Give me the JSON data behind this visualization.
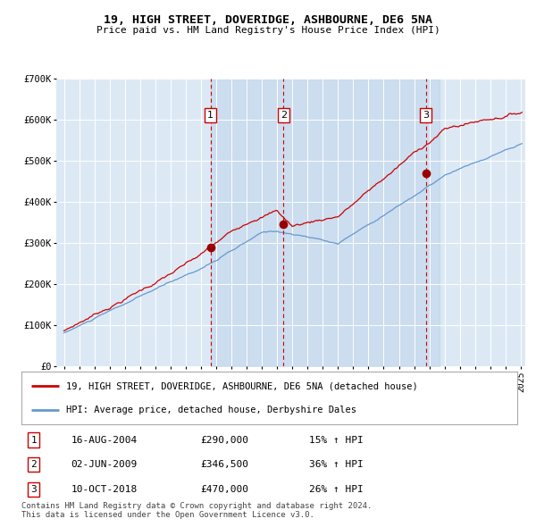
{
  "title": "19, HIGH STREET, DOVERIDGE, ASHBOURNE, DE6 5NA",
  "subtitle": "Price paid vs. HM Land Registry's House Price Index (HPI)",
  "sale_label": "19, HIGH STREET, DOVERIDGE, ASHBOURNE, DE6 5NA (detached house)",
  "hpi_label": "HPI: Average price, detached house, Derbyshire Dales",
  "sales": [
    {
      "num": 1,
      "date": "16-AUG-2004",
      "price": 290000,
      "pct": "15%",
      "dir": "↑"
    },
    {
      "num": 2,
      "date": "02-JUN-2009",
      "price": 346500,
      "pct": "36%",
      "dir": "↑"
    },
    {
      "num": 3,
      "date": "10-OCT-2018",
      "price": 470000,
      "pct": "26%",
      "dir": "↑"
    }
  ],
  "sale_dates_decimal": [
    2004.622,
    2009.414,
    2018.775
  ],
  "ylim": [
    0,
    700000
  ],
  "xlim_start": 1994.5,
  "xlim_end": 2025.3,
  "background_color": "#ffffff",
  "plot_bg_color": "#dce9f5",
  "grid_color": "#ffffff",
  "red_line_color": "#cc0000",
  "blue_line_color": "#6699cc",
  "dashed_line_color": "#cc0000",
  "sale_marker_color": "#990000",
  "annotation_box_color": "#cc0000",
  "footer": "Contains HM Land Registry data © Crown copyright and database right 2024.\nThis data is licensed under the Open Government Licence v3.0."
}
